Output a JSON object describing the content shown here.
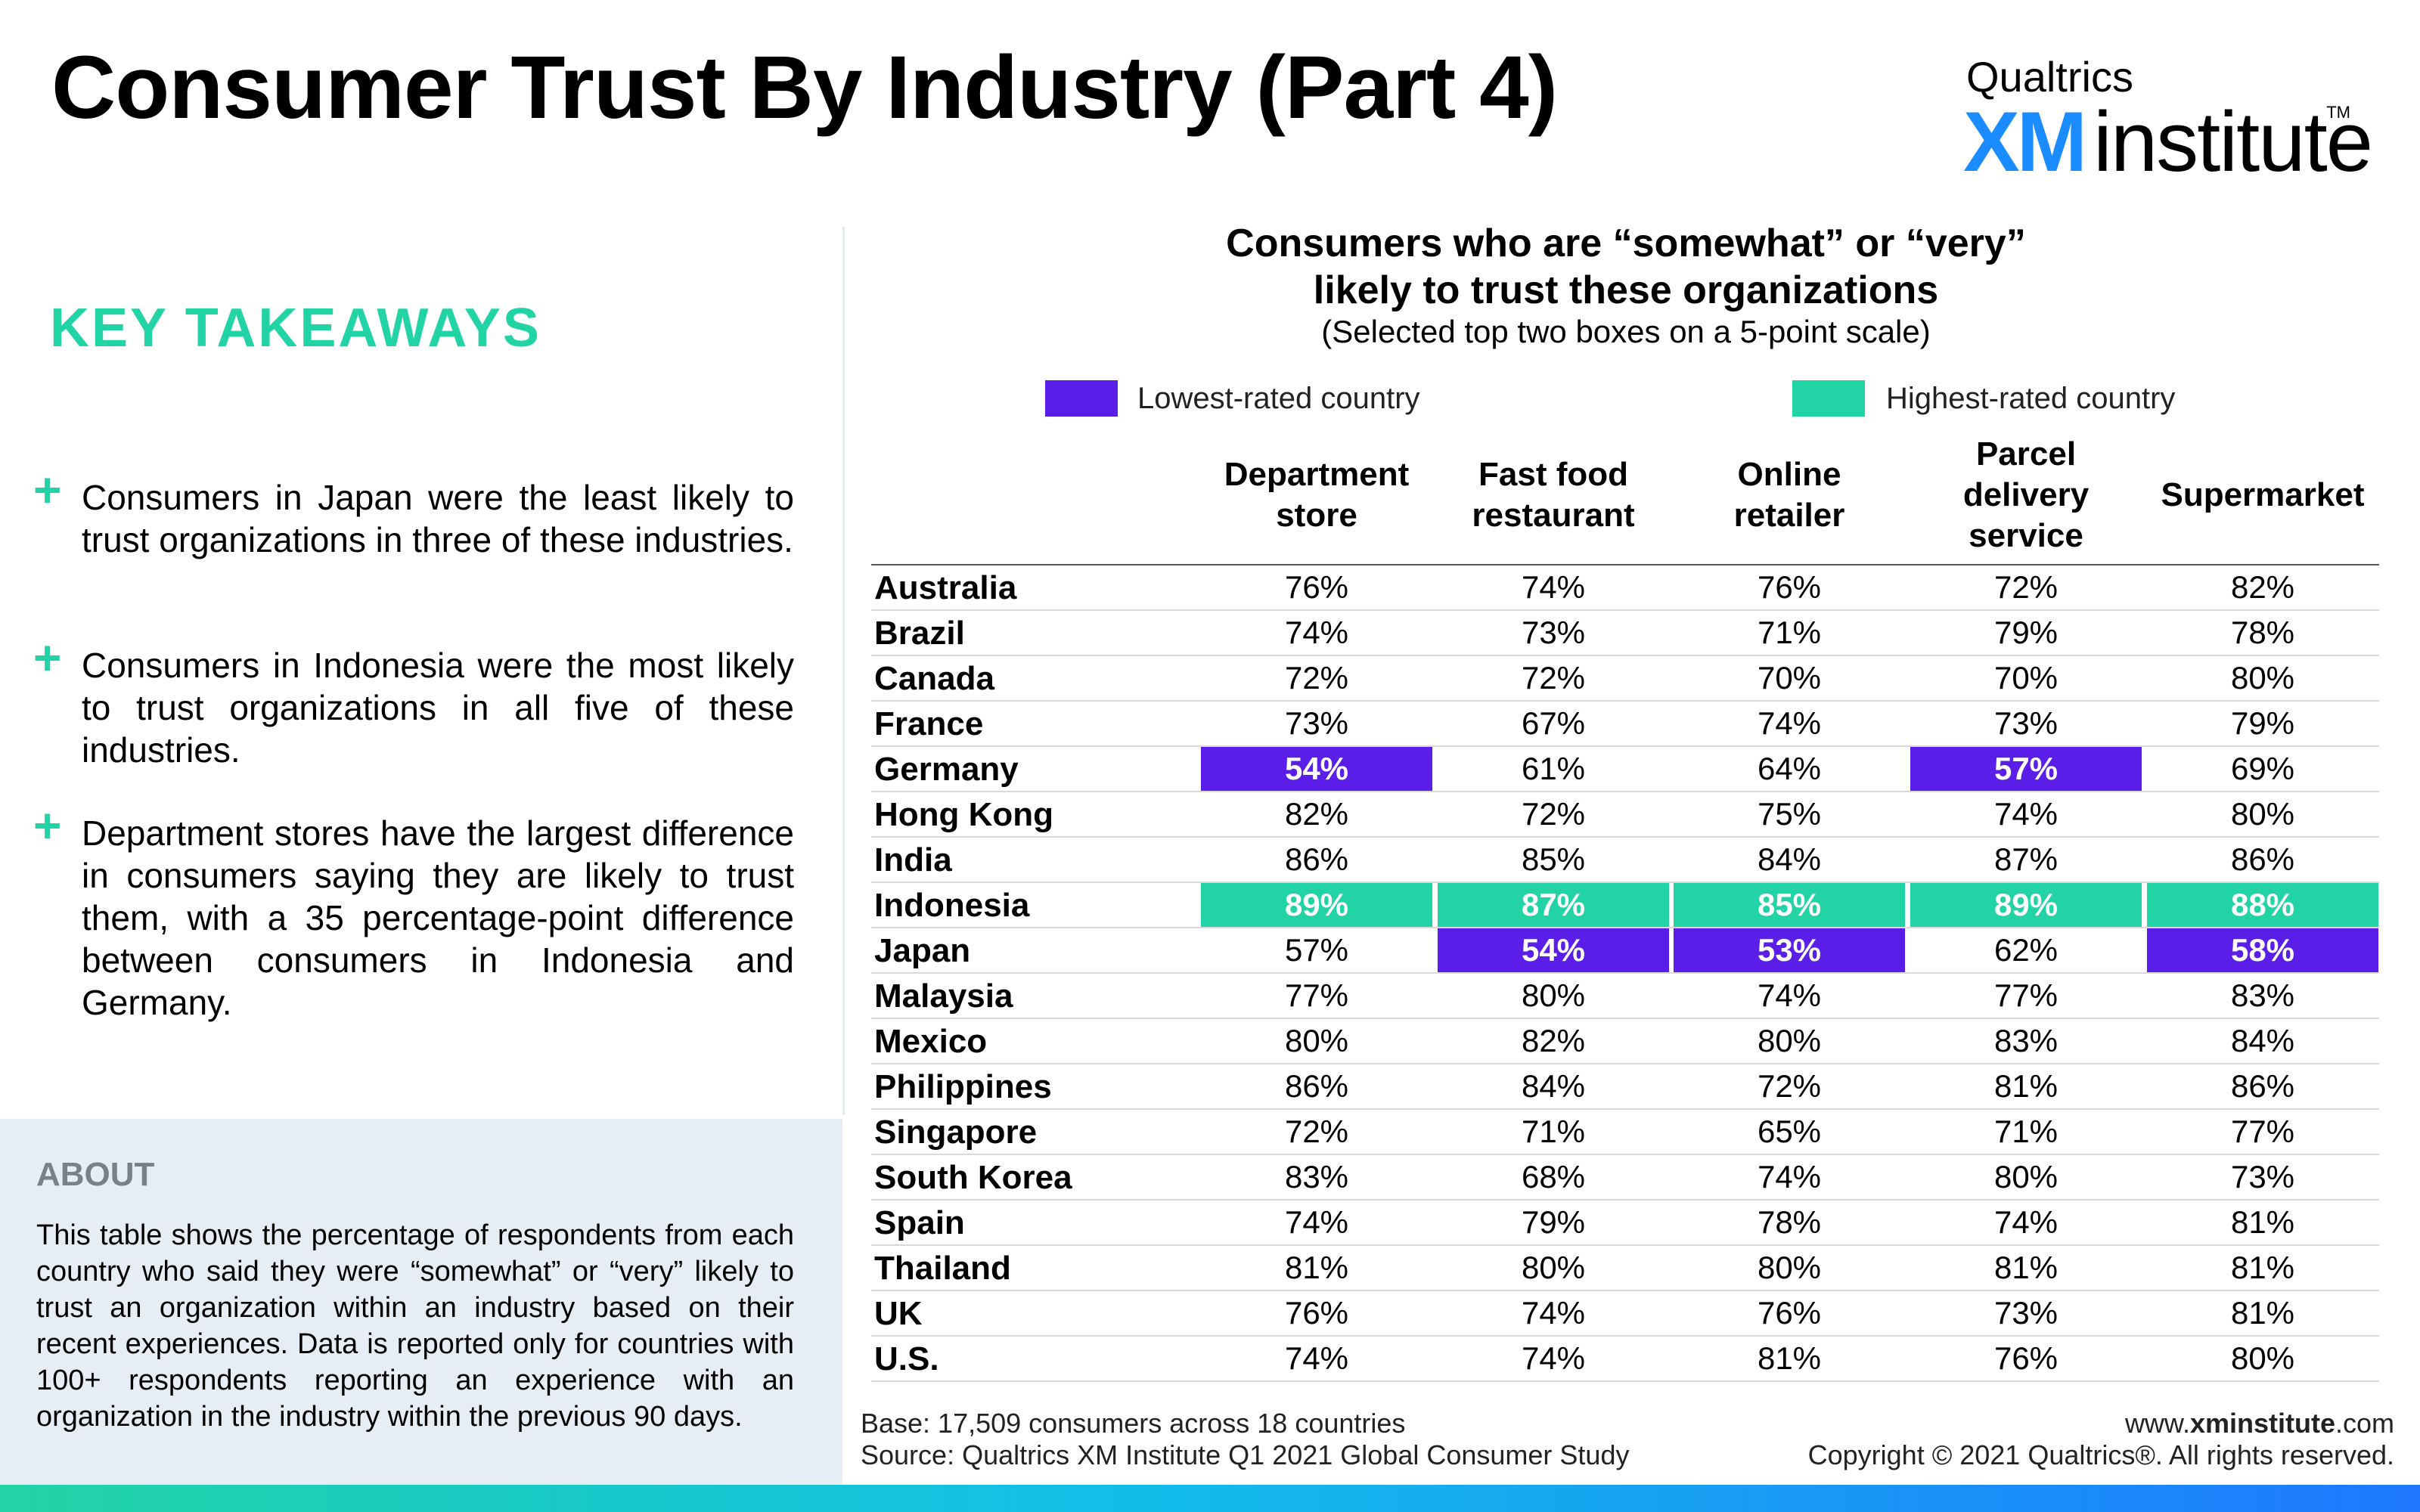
{
  "page": {
    "title": "Consumer Trust By Industry (Part 4)"
  },
  "logo": {
    "top": "Qualtrics",
    "xm": "XM",
    "institute": "institute",
    "tm": "TM"
  },
  "takeaways": {
    "heading": "KEY TAKEAWAYS",
    "bullet_symbol": "+",
    "items": [
      "Consumers in Japan were the least likely to trust organizations in three of these industries.",
      "Consumers in Indonesia were the most likely to trust organizations in all five of these industries.",
      "Department stores have the largest difference in consumers saying they are likely to trust them, with a 35 percentage-point difference between consumers in Indonesia and Germany."
    ]
  },
  "about": {
    "heading": "ABOUT",
    "text": "This table shows the percentage of respondents from each country who said they were “somewhat” or “very” likely to trust an organization within an industry based on their recent experiences. Data is reported only for countries with 100+ respondents reporting an experience with an organization in the industry within the previous 90 days."
  },
  "footer": {
    "base": "Base: 17,509 consumers across 18 countries",
    "source": "Source: Qualtrics XM Institute Q1 2021 Global Consumer Study",
    "url_prefix": "www.",
    "url_bold": "xminstitute",
    "url_suffix": ".com",
    "copyright": "Copyright © 2021 Qualtrics®. All rights reserved."
  },
  "colors": {
    "lowest": "#5b1de8",
    "highest": "#22d3a5",
    "accent_blue": "#1a8cff"
  },
  "chart_data": {
    "type": "table",
    "title_line1": "Consumers who are “somewhat” or “very”",
    "title_line2": "likely to trust these organizations",
    "subtitle": "(Selected top two boxes on a 5-point scale)",
    "legend": [
      {
        "label": "Lowest-rated country",
        "color": "#5b1de8"
      },
      {
        "label": "Highest-rated country",
        "color": "#22d3a5"
      }
    ],
    "columns": [
      [
        "Department",
        "store"
      ],
      [
        "Fast food",
        "restaurant"
      ],
      [
        "Online",
        "retailer"
      ],
      [
        "Parcel",
        "delivery",
        "service"
      ],
      [
        "Supermarket"
      ]
    ],
    "rows": [
      {
        "country": "Australia",
        "values": [
          "76%",
          "74%",
          "76%",
          "72%",
          "82%"
        ],
        "marks": [
          "",
          "",
          "",
          "",
          ""
        ]
      },
      {
        "country": "Brazil",
        "values": [
          "74%",
          "73%",
          "71%",
          "79%",
          "78%"
        ],
        "marks": [
          "",
          "",
          "",
          "",
          ""
        ]
      },
      {
        "country": "Canada",
        "values": [
          "72%",
          "72%",
          "70%",
          "70%",
          "80%"
        ],
        "marks": [
          "",
          "",
          "",
          "",
          ""
        ]
      },
      {
        "country": "France",
        "values": [
          "73%",
          "67%",
          "74%",
          "73%",
          "79%"
        ],
        "marks": [
          "",
          "",
          "",
          "",
          ""
        ]
      },
      {
        "country": "Germany",
        "values": [
          "54%",
          "61%",
          "64%",
          "57%",
          "69%"
        ],
        "marks": [
          "low",
          "",
          "",
          "low",
          ""
        ]
      },
      {
        "country": "Hong Kong",
        "values": [
          "82%",
          "72%",
          "75%",
          "74%",
          "80%"
        ],
        "marks": [
          "",
          "",
          "",
          "",
          ""
        ]
      },
      {
        "country": "India",
        "values": [
          "86%",
          "85%",
          "84%",
          "87%",
          "86%"
        ],
        "marks": [
          "",
          "",
          "",
          "",
          ""
        ]
      },
      {
        "country": "Indonesia",
        "values": [
          "89%",
          "87%",
          "85%",
          "89%",
          "88%"
        ],
        "marks": [
          "high",
          "high",
          "high",
          "high",
          "high"
        ]
      },
      {
        "country": "Japan",
        "values": [
          "57%",
          "54%",
          "53%",
          "62%",
          "58%"
        ],
        "marks": [
          "",
          "low",
          "low",
          "",
          "low"
        ]
      },
      {
        "country": "Malaysia",
        "values": [
          "77%",
          "80%",
          "74%",
          "77%",
          "83%"
        ],
        "marks": [
          "",
          "",
          "",
          "",
          ""
        ]
      },
      {
        "country": "Mexico",
        "values": [
          "80%",
          "82%",
          "80%",
          "83%",
          "84%"
        ],
        "marks": [
          "",
          "",
          "",
          "",
          ""
        ]
      },
      {
        "country": "Philippines",
        "values": [
          "86%",
          "84%",
          "72%",
          "81%",
          "86%"
        ],
        "marks": [
          "",
          "",
          "",
          "",
          ""
        ]
      },
      {
        "country": "Singapore",
        "values": [
          "72%",
          "71%",
          "65%",
          "71%",
          "77%"
        ],
        "marks": [
          "",
          "",
          "",
          "",
          ""
        ]
      },
      {
        "country": "South Korea",
        "values": [
          "83%",
          "68%",
          "74%",
          "80%",
          "73%"
        ],
        "marks": [
          "",
          "",
          "",
          "",
          ""
        ]
      },
      {
        "country": "Spain",
        "values": [
          "74%",
          "79%",
          "78%",
          "74%",
          "81%"
        ],
        "marks": [
          "",
          "",
          "",
          "",
          ""
        ]
      },
      {
        "country": "Thailand",
        "values": [
          "81%",
          "80%",
          "80%",
          "81%",
          "81%"
        ],
        "marks": [
          "",
          "",
          "",
          "",
          ""
        ]
      },
      {
        "country": "UK",
        "values": [
          "76%",
          "74%",
          "76%",
          "73%",
          "81%"
        ],
        "marks": [
          "",
          "",
          "",
          "",
          ""
        ]
      },
      {
        "country": "U.S.",
        "values": [
          "74%",
          "74%",
          "81%",
          "76%",
          "80%"
        ],
        "marks": [
          "",
          "",
          "",
          "",
          ""
        ]
      }
    ]
  }
}
